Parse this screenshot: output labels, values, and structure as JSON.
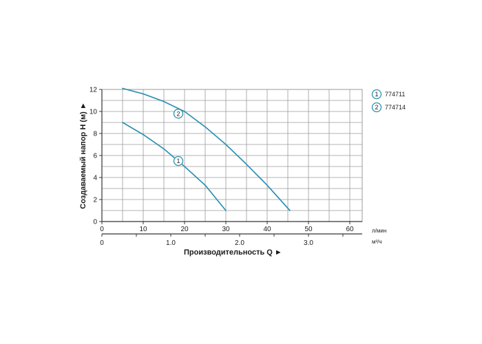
{
  "chart_data": {
    "type": "line",
    "ylabel": "Создаваемый напор H (м) ►",
    "xlabel": "Производительность Q ►",
    "x_unit": "л/мин",
    "x2_unit": "м³/ч",
    "xlim": [
      0,
      63
    ],
    "ylim": [
      0,
      12
    ],
    "x_ticks": [
      0,
      10,
      20,
      30,
      40,
      50,
      60
    ],
    "y_ticks": [
      0,
      2,
      4,
      6,
      8,
      10,
      12
    ],
    "x2_ticks": [
      0,
      1.0,
      2.0,
      3.0
    ],
    "x2_tick_labels": [
      "0",
      "1.0",
      "2.0",
      "3.0"
    ],
    "grid": true,
    "legend_placement": "right",
    "line_color": "#2e90b0",
    "series": [
      {
        "name": "774711",
        "marker": "1",
        "marker_at": [
          18.5,
          5.5
        ],
        "x": [
          5,
          10,
          15,
          20,
          25,
          30
        ],
        "y": [
          9.0,
          7.9,
          6.6,
          5.0,
          3.3,
          1.0
        ]
      },
      {
        "name": "774714",
        "marker": "2",
        "marker_at": [
          18.5,
          9.8
        ],
        "x": [
          5,
          10,
          15,
          20,
          25,
          30,
          35,
          40,
          45.5
        ],
        "y": [
          12.1,
          11.6,
          10.9,
          10.0,
          8.6,
          7.0,
          5.2,
          3.3,
          1.0
        ]
      }
    ]
  }
}
